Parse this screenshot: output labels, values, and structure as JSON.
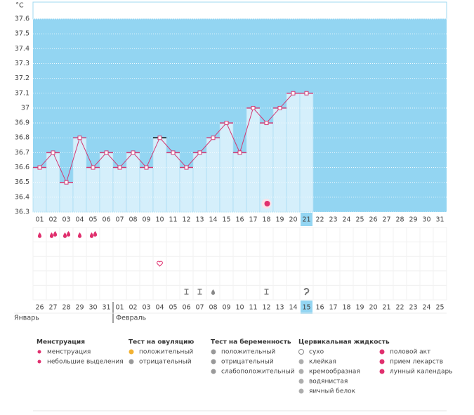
{
  "chart_data": {
    "type": "line",
    "y_label": "°C",
    "categories": [
      "01",
      "02",
      "03",
      "04",
      "05",
      "06",
      "07",
      "08",
      "09",
      "10",
      "11",
      "12",
      "13",
      "14",
      "15",
      "16",
      "17",
      "18",
      "19",
      "20",
      "21",
      "22",
      "23",
      "24",
      "25",
      "26",
      "27",
      "28",
      "29",
      "30",
      "31"
    ],
    "series": [
      {
        "name": "temperature",
        "color": "#d23a74",
        "values": [
          36.6,
          36.7,
          36.5,
          36.8,
          36.6,
          36.7,
          36.6,
          36.7,
          36.6,
          36.8,
          36.7,
          36.6,
          36.7,
          36.8,
          36.9,
          36.7,
          37.0,
          36.9,
          37.0,
          37.1,
          37.1,
          null,
          null,
          null,
          null,
          null,
          null,
          null,
          null,
          null,
          null
        ]
      }
    ],
    "ylim": [
      36.3,
      37.6
    ],
    "yticks": [
      37.6,
      37.5,
      37.4,
      37.3,
      37.2,
      37.1,
      37,
      36.9,
      36.8,
      36.7,
      36.6,
      36.5,
      36.4,
      36.3
    ],
    "grid": true,
    "dates": [
      {
        "label": "26",
        "weekend": false
      },
      {
        "label": "27",
        "weekend": false
      },
      {
        "label": "28",
        "weekend": true
      },
      {
        "label": "29",
        "weekend": true
      },
      {
        "label": "30",
        "weekend": false
      },
      {
        "label": "31",
        "weekend": false
      },
      {
        "label": "01",
        "weekend": false
      },
      {
        "label": "02",
        "weekend": false
      },
      {
        "label": "03",
        "weekend": false
      },
      {
        "label": "04",
        "weekend": true
      },
      {
        "label": "05",
        "weekend": true
      },
      {
        "label": "06",
        "weekend": false
      },
      {
        "label": "07",
        "weekend": false
      },
      {
        "label": "08",
        "weekend": false
      },
      {
        "label": "09",
        "weekend": false
      },
      {
        "label": "10",
        "weekend": false
      },
      {
        "label": "11",
        "weekend": true
      },
      {
        "label": "12",
        "weekend": true
      },
      {
        "label": "13",
        "weekend": false
      },
      {
        "label": "14",
        "weekend": false
      },
      {
        "label": "15",
        "weekend": false,
        "highlight": true
      },
      {
        "label": "16",
        "weekend": false
      },
      {
        "label": "17",
        "weekend": false
      },
      {
        "label": "18",
        "weekend": true
      },
      {
        "label": "19",
        "weekend": true
      },
      {
        "label": "20",
        "weekend": false
      },
      {
        "label": "21",
        "weekend": false
      },
      {
        "label": "22",
        "weekend": false
      },
      {
        "label": "23",
        "weekend": false
      },
      {
        "label": "24",
        "weekend": false
      },
      {
        "label": "25",
        "weekend": true
      }
    ],
    "months": [
      "Январь",
      "Февраль"
    ],
    "legend": [
      {
        "title": "Менструация",
        "items": [
          "менструация",
          "небольшие выделения"
        ]
      },
      {
        "title": "Тест на овуляцию",
        "items": [
          "положительный",
          "отрицательный"
        ]
      },
      {
        "title": "Тест на беременность",
        "items": [
          "положительный",
          "отрицательный",
          "слабоположительный"
        ]
      },
      {
        "title": "Цервикальная жидкость",
        "items": [
          "сухо",
          "клейкая",
          "кремообразная",
          "водянистая",
          "яичный белок"
        ]
      },
      {
        "title": "",
        "items": [
          "половой акт",
          "прием лекарств",
          "лунный календарь"
        ]
      }
    ]
  }
}
